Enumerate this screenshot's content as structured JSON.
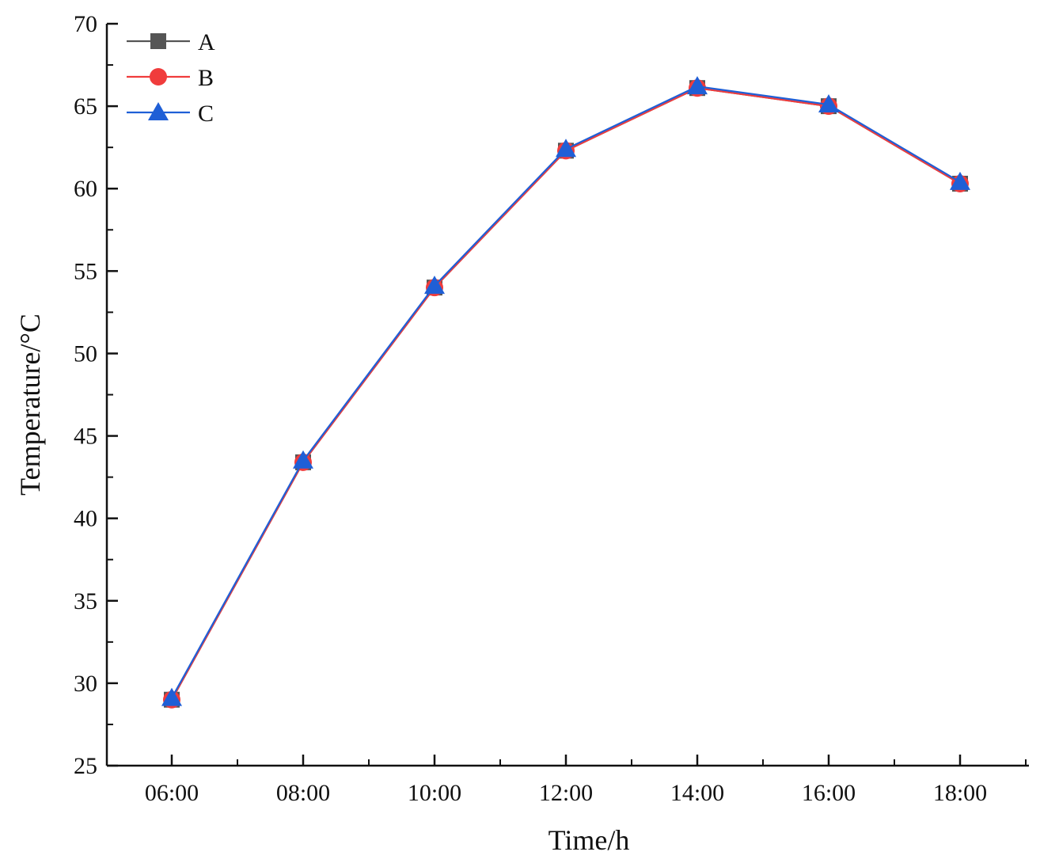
{
  "chart_data": {
    "type": "line",
    "title": "",
    "xlabel": "Time/h",
    "ylabel": "Temperature/°C",
    "categories": [
      "06:00",
      "08:00",
      "10:00",
      "12:00",
      "14:00",
      "16:00",
      "18:00"
    ],
    "ylim": [
      25,
      70
    ],
    "yticks": [
      25,
      30,
      35,
      40,
      45,
      50,
      55,
      60,
      65,
      70
    ],
    "grid": false,
    "legend_position": "top-left",
    "series": [
      {
        "name": "A",
        "marker": "square",
        "color": "#555555",
        "values": [
          29.0,
          43.4,
          54.0,
          62.3,
          66.1,
          65.0,
          60.3
        ]
      },
      {
        "name": "B",
        "marker": "circle",
        "color": "#f03c3c",
        "values": [
          29.0,
          43.4,
          54.0,
          62.3,
          66.1,
          65.0,
          60.3
        ]
      },
      {
        "name": "C",
        "marker": "triangle",
        "color": "#1f5fd6",
        "values": [
          29.1,
          43.5,
          54.1,
          62.4,
          66.2,
          65.1,
          60.4
        ]
      }
    ]
  }
}
